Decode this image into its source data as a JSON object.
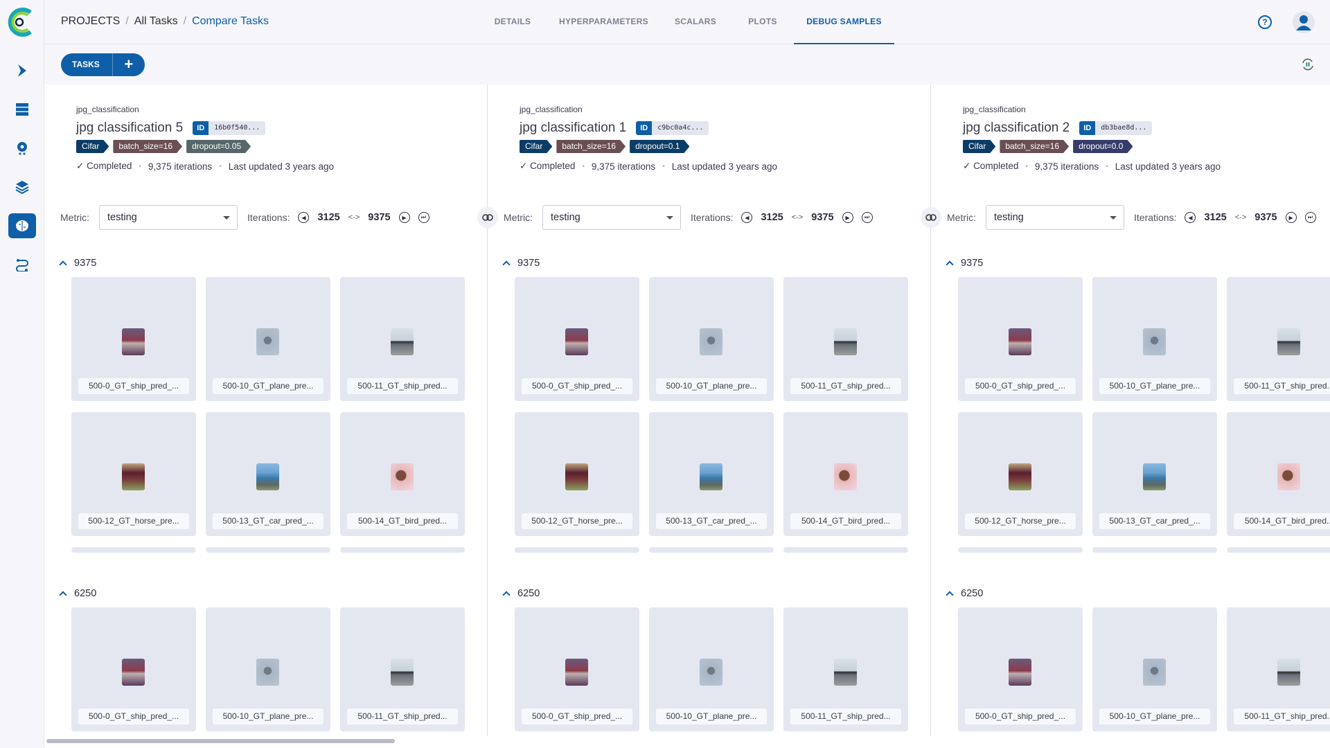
{
  "breadcrumb": {
    "projects": "PROJECTS",
    "all_tasks": "All Tasks",
    "current": "Compare Tasks",
    "separator": "/"
  },
  "tabs": [
    {
      "label": "DETAILS",
      "active": false
    },
    {
      "label": "HYPERPARAMETERS",
      "active": false
    },
    {
      "label": "SCALARS",
      "active": false
    },
    {
      "label": "PLOTS",
      "active": false
    },
    {
      "label": "DEBUG SAMPLES",
      "active": true
    }
  ],
  "header_icons": {
    "help": "?",
    "help_icon": "help-circle-icon",
    "avatar_icon": "user-avatar-icon"
  },
  "toolbar": {
    "tasks_label": "TASKS",
    "add_label": "+",
    "refresh_icon": "auto-refresh-pause-icon"
  },
  "sidebar": {
    "items": [
      {
        "icon": "pipelines-icon"
      },
      {
        "icon": "datasets-icon"
      },
      {
        "icon": "orchestration-icon"
      },
      {
        "icon": "model-layers-icon"
      },
      {
        "icon": "experiments-brain-icon",
        "active": true
      },
      {
        "icon": "reports-flow-icon"
      }
    ]
  },
  "colors": {
    "accent": "#0e5fa8",
    "tag_cifar": "#0b3c66",
    "tag_batch": "#6a4e54"
  },
  "columns": [
    {
      "project": "jpg_classification",
      "title": "jpg classification 5",
      "id_key": "ID",
      "id": "16b0f540...",
      "tags": [
        {
          "label": "Cifar",
          "color": "#0b3c66"
        },
        {
          "label": "batch_size=16",
          "color": "#6a4e54"
        },
        {
          "label": "dropout=0.05",
          "color": "#566669"
        }
      ],
      "status": "Completed",
      "iterations": "9,375 iterations",
      "updated": "Last updated 3 years ago",
      "metric_label": "Metric:",
      "metric": "testing",
      "iter_label": "Iterations:",
      "iter_from": "3125",
      "iter_arrow": "<->",
      "iter_to": "9375"
    },
    {
      "project": "jpg_classification",
      "title": "jpg classification 1",
      "id_key": "ID",
      "id": "c9bc0a4c...",
      "tags": [
        {
          "label": "Cifar",
          "color": "#0b3c66"
        },
        {
          "label": "batch_size=16",
          "color": "#6a4e54"
        },
        {
          "label": "dropout=0.1",
          "color": "#0b3c66"
        }
      ],
      "status": "Completed",
      "iterations": "9,375 iterations",
      "updated": "Last updated 3 years ago",
      "metric_label": "Metric:",
      "metric": "testing",
      "iter_label": "Iterations:",
      "iter_from": "3125",
      "iter_arrow": "<->",
      "iter_to": "9375"
    },
    {
      "project": "jpg_classification",
      "title": "jpg classification 2",
      "id_key": "ID",
      "id": "db3bae8d...",
      "tags": [
        {
          "label": "Cifar",
          "color": "#0b3c66"
        },
        {
          "label": "batch_size=16",
          "color": "#6a4e54"
        },
        {
          "label": "dropout=0.0",
          "color": "#363d6b"
        }
      ],
      "status": "Completed",
      "iterations": "9,375 iterations",
      "updated": "Last updated 3 years ago",
      "metric_label": "Metric:",
      "metric": "testing",
      "iter_label": "Iterations:",
      "iter_from": "3125",
      "iter_arrow": "<->",
      "iter_to": "9375"
    }
  ],
  "sections": [
    {
      "iteration": "9375",
      "samples": [
        {
          "label": "500-0_GT_ship_pred_...",
          "thumb": "ship-red"
        },
        {
          "label": "500-10_GT_plane_pre...",
          "thumb": "plane"
        },
        {
          "label": "500-11_GT_ship_pred...",
          "thumb": "ship-sea"
        },
        {
          "label": "500-12_GT_horse_pre...",
          "thumb": "horse"
        },
        {
          "label": "500-13_GT_car_pred_...",
          "thumb": "car"
        },
        {
          "label": "500-14_GT_bird_pred...",
          "thumb": "bird"
        }
      ]
    },
    {
      "iteration": "6250",
      "samples": [
        {
          "label": "500-0_GT_ship_pred_...",
          "thumb": "ship-red"
        },
        {
          "label": "500-10_GT_plane_pre...",
          "thumb": "plane"
        },
        {
          "label": "500-11_GT_ship_pred...",
          "thumb": "ship-sea"
        }
      ]
    }
  ]
}
